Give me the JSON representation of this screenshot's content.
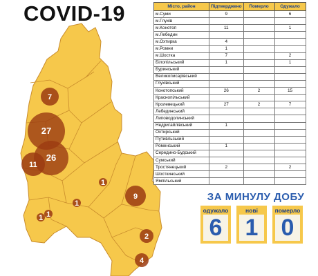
{
  "title": "COVID-19",
  "table": {
    "headers": {
      "city": "Місто, район",
      "confirmed": "Підтверджено",
      "died": "Померло",
      "recovered": "Одужало"
    },
    "rows": [
      {
        "name": "м.Суми",
        "confirmed": "9",
        "died": "",
        "recovered": "6"
      },
      {
        "name": "м.Глухів",
        "confirmed": "",
        "died": "",
        "recovered": ""
      },
      {
        "name": "м.Конотоп",
        "confirmed": "11",
        "died": "",
        "recovered": "1"
      },
      {
        "name": "м.Лебедин",
        "confirmed": "",
        "died": "",
        "recovered": ""
      },
      {
        "name": "м.Охтирка",
        "confirmed": "4",
        "died": "",
        "recovered": ""
      },
      {
        "name": "м.Ромни",
        "confirmed": "1",
        "died": "",
        "recovered": ""
      },
      {
        "name": "м.Шостка",
        "confirmed": "7",
        "died": "",
        "recovered": "2"
      },
      {
        "name": "Білопільський",
        "confirmed": "1",
        "died": "",
        "recovered": "1"
      },
      {
        "name": "Буринський",
        "confirmed": "",
        "died": "",
        "recovered": ""
      },
      {
        "name": "Великописарівський",
        "confirmed": "",
        "died": "",
        "recovered": ""
      },
      {
        "name": "Глухівський",
        "confirmed": "",
        "died": "",
        "recovered": ""
      },
      {
        "name": "Конотопський",
        "confirmed": "26",
        "died": "2",
        "recovered": "15"
      },
      {
        "name": "Краснопільський",
        "confirmed": "",
        "died": "",
        "recovered": ""
      },
      {
        "name": "Кролевецький",
        "confirmed": "27",
        "died": "2",
        "recovered": "7"
      },
      {
        "name": "Лебединський",
        "confirmed": "",
        "died": "",
        "recovered": ""
      },
      {
        "name": "Липоводолинський",
        "confirmed": "",
        "died": "",
        "recovered": ""
      },
      {
        "name": "Недригайлівський",
        "confirmed": "1",
        "died": "",
        "recovered": ""
      },
      {
        "name": "Охтирський",
        "confirmed": "",
        "died": "",
        "recovered": ""
      },
      {
        "name": "Путивльський",
        "confirmed": "",
        "died": "",
        "recovered": ""
      },
      {
        "name": "Роменський",
        "confirmed": "1",
        "died": "",
        "recovered": ""
      },
      {
        "name": "Середино-Будський",
        "confirmed": "",
        "died": "",
        "recovered": ""
      },
      {
        "name": "Сумський",
        "confirmed": "",
        "died": "",
        "recovered": ""
      },
      {
        "name": "Тростянецький",
        "confirmed": "2",
        "died": "",
        "recovered": "2"
      },
      {
        "name": "Шосткинський",
        "confirmed": "",
        "died": "",
        "recovered": ""
      },
      {
        "name": "Ямпільський",
        "confirmed": "",
        "died": "",
        "recovered": ""
      }
    ]
  },
  "map": {
    "markers": [
      {
        "id": "shostka",
        "label": "7"
      },
      {
        "id": "krolevets",
        "label": "27"
      },
      {
        "id": "konotop-district",
        "label": "26"
      },
      {
        "id": "konotop-city",
        "label": "11"
      },
      {
        "id": "romny",
        "label": "1"
      },
      {
        "id": "nedryhailiv",
        "label": "1"
      },
      {
        "id": "sumy",
        "label": "9"
      },
      {
        "id": "southwest-a",
        "label": "1"
      },
      {
        "id": "southwest-b",
        "label": "1"
      },
      {
        "id": "trostianets",
        "label": "2"
      },
      {
        "id": "okhtyrka",
        "label": "4"
      }
    ]
  },
  "daily": {
    "title": "ЗА МИНУЛУ ДОБУ",
    "stats": [
      {
        "label": "одужало",
        "value": "6"
      },
      {
        "label": "нові",
        "value": "1"
      },
      {
        "label": "померло",
        "value": "0"
      }
    ]
  },
  "colors": {
    "region_fill": "#f6c84b",
    "border": "#c98c2c",
    "marker": "#9b3b12",
    "accent_blue": "#2a5cae"
  }
}
